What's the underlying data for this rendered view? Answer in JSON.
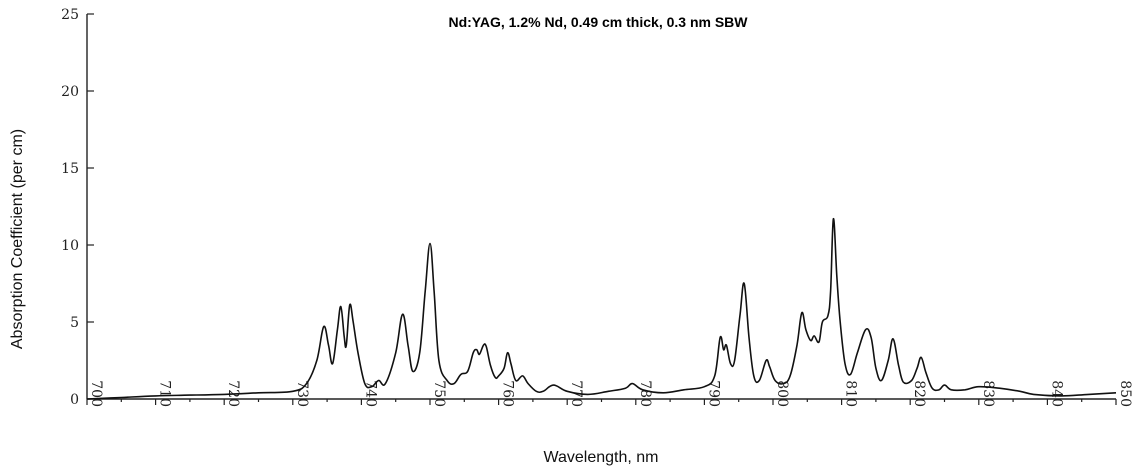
{
  "chart_data": {
    "type": "line",
    "title": "Nd:YAG, 1.2% Nd, 0.49 cm thick, 0.3 nm SBW",
    "xlabel": "Wavelength, nm",
    "ylabel": "Absorption Coefficient (per cm)",
    "xlim": [
      700,
      850
    ],
    "ylim": [
      0,
      25
    ],
    "x_ticks": [
      700,
      710,
      720,
      730,
      740,
      750,
      760,
      770,
      780,
      790,
      800,
      810,
      820,
      830,
      840,
      850
    ],
    "y_ticks": [
      0,
      5,
      10,
      15,
      20,
      25
    ],
    "grid": false,
    "series": [
      {
        "points": [
          [
            700,
            0.0
          ],
          [
            705,
            0.1
          ],
          [
            710,
            0.2
          ],
          [
            715,
            0.25
          ],
          [
            720,
            0.3
          ],
          [
            725,
            0.4
          ],
          [
            730,
            0.5
          ],
          [
            732,
            1.0
          ],
          [
            733.5,
            2.5
          ],
          [
            734.5,
            4.7
          ],
          [
            735.2,
            3.5
          ],
          [
            735.8,
            2.3
          ],
          [
            736.5,
            4.5
          ],
          [
            737,
            6.0
          ],
          [
            737.5,
            4.0
          ],
          [
            737.8,
            3.5
          ],
          [
            738.3,
            6.1
          ],
          [
            738.8,
            5.0
          ],
          [
            739.5,
            3.0
          ],
          [
            740.5,
            1.0
          ],
          [
            741.5,
            0.8
          ],
          [
            742.5,
            1.2
          ],
          [
            743.5,
            1.0
          ],
          [
            745,
            3.0
          ],
          [
            746,
            5.5
          ],
          [
            746.8,
            3.5
          ],
          [
            747.5,
            1.8
          ],
          [
            748.5,
            3.0
          ],
          [
            749.3,
            7.0
          ],
          [
            750,
            10.1
          ],
          [
            750.6,
            7.0
          ],
          [
            751.3,
            2.5
          ],
          [
            752.5,
            1.2
          ],
          [
            753.5,
            1.0
          ],
          [
            754.5,
            1.6
          ],
          [
            755.5,
            1.8
          ],
          [
            756.3,
            3.0
          ],
          [
            756.8,
            3.2
          ],
          [
            757.2,
            2.9
          ],
          [
            757.8,
            3.5
          ],
          [
            758.2,
            3.4
          ],
          [
            758.8,
            2.2
          ],
          [
            759.5,
            1.4
          ],
          [
            760,
            1.5
          ],
          [
            760.8,
            2.0
          ],
          [
            761.3,
            3.0
          ],
          [
            761.8,
            2.3
          ],
          [
            762.5,
            1.2
          ],
          [
            763.5,
            1.5
          ],
          [
            764.3,
            1.0
          ],
          [
            765.5,
            0.5
          ],
          [
            766.5,
            0.5
          ],
          [
            768,
            0.9
          ],
          [
            770,
            0.5
          ],
          [
            773,
            0.3
          ],
          [
            776,
            0.5
          ],
          [
            778.5,
            0.7
          ],
          [
            779.5,
            1.0
          ],
          [
            781,
            0.6
          ],
          [
            784,
            0.4
          ],
          [
            787,
            0.6
          ],
          [
            790,
            0.8
          ],
          [
            791.5,
            1.5
          ],
          [
            792.3,
            4.0
          ],
          [
            792.8,
            3.2
          ],
          [
            793.2,
            3.5
          ],
          [
            793.8,
            2.3
          ],
          [
            794.4,
            2.5
          ],
          [
            795.2,
            5.5
          ],
          [
            795.8,
            7.5
          ],
          [
            796.5,
            4.0
          ],
          [
            797.2,
            1.5
          ],
          [
            798,
            1.2
          ],
          [
            799,
            2.5
          ],
          [
            799.5,
            2.1
          ],
          [
            800.3,
            1.2
          ],
          [
            801.5,
            1.0
          ],
          [
            802.5,
            1.5
          ],
          [
            803.5,
            3.5
          ],
          [
            804.2,
            5.6
          ],
          [
            804.8,
            4.5
          ],
          [
            805.5,
            3.8
          ],
          [
            806,
            4.1
          ],
          [
            806.7,
            3.7
          ],
          [
            807.2,
            5.0
          ],
          [
            808,
            5.4
          ],
          [
            808.4,
            7.0
          ],
          [
            808.8,
            11.7
          ],
          [
            809.3,
            8.0
          ],
          [
            809.8,
            5.0
          ],
          [
            810.5,
            2.3
          ],
          [
            811.3,
            1.6
          ],
          [
            812.3,
            3.0
          ],
          [
            813.5,
            4.5
          ],
          [
            814.3,
            4.0
          ],
          [
            815,
            2.0
          ],
          [
            815.8,
            1.2
          ],
          [
            816.8,
            2.5
          ],
          [
            817.5,
            3.9
          ],
          [
            818.3,
            2.2
          ],
          [
            819,
            1.1
          ],
          [
            820.2,
            1.2
          ],
          [
            821,
            2.0
          ],
          [
            821.6,
            2.7
          ],
          [
            822.3,
            1.7
          ],
          [
            823.2,
            0.7
          ],
          [
            824.2,
            0.6
          ],
          [
            825,
            0.9
          ],
          [
            826,
            0.6
          ],
          [
            828,
            0.6
          ],
          [
            830,
            0.8
          ],
          [
            833,
            0.7
          ],
          [
            836,
            0.5
          ],
          [
            838,
            0.3
          ],
          [
            842,
            0.2
          ],
          [
            846,
            0.3
          ],
          [
            850,
            0.4
          ]
        ]
      }
    ]
  }
}
